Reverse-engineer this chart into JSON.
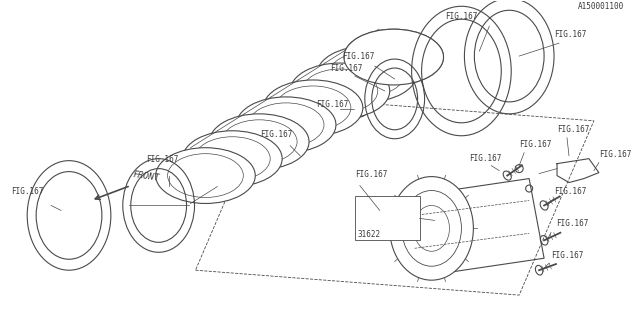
{
  "bg_color": "#ffffff",
  "line_color": "#4a4a4a",
  "text_color": "#3a3a3a",
  "title": "A150001100",
  "front_label": "FRONT",
  "part_number": "31622",
  "figsize": [
    6.4,
    3.2
  ],
  "dpi": 100
}
